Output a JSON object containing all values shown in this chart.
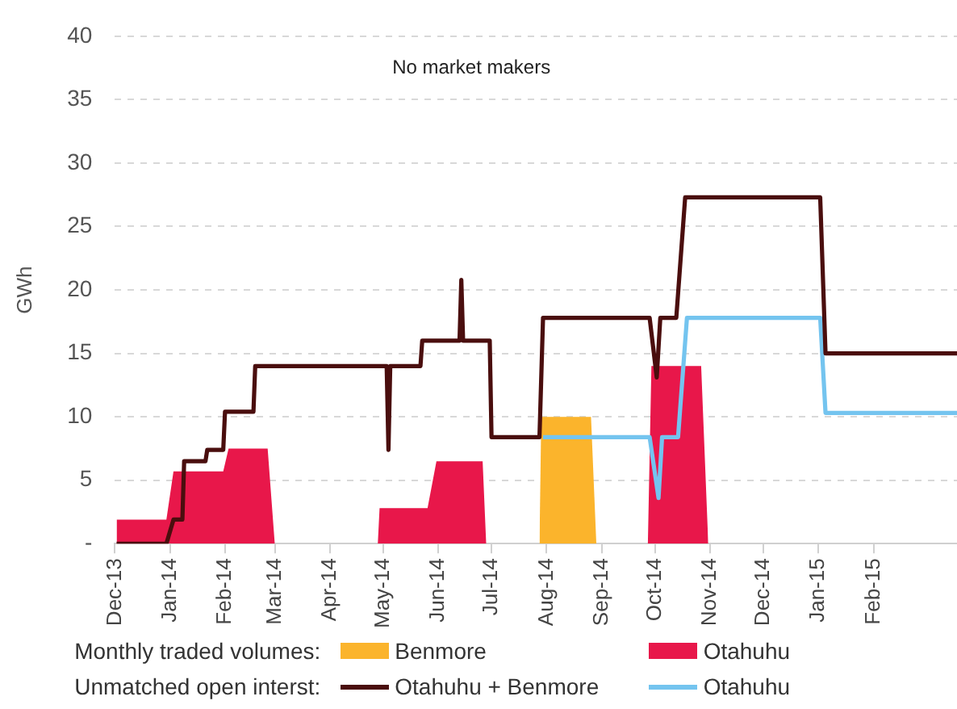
{
  "chart_data": {
    "type": "area",
    "ylabel": "GWh",
    "annotations": [
      "No market makers",
      "Monthly traded volumes:",
      "Unmatched open interst:"
    ],
    "xlim": [
      "2013-12-01",
      "2015-03-20"
    ],
    "xticks": [
      {
        "value": "2013-12",
        "label": "Dec-13"
      },
      {
        "value": "2014-01",
        "label": "Jan-14"
      },
      {
        "value": "2014-02",
        "label": "Feb-14"
      },
      {
        "value": "2014-03",
        "label": "Mar-14"
      },
      {
        "value": "2014-04",
        "label": "Apr-14"
      },
      {
        "value": "2014-05",
        "label": "May-14"
      },
      {
        "value": "2014-06",
        "label": "Jun-14"
      },
      {
        "value": "2014-07",
        "label": "Jul-14"
      },
      {
        "value": "2014-08",
        "label": "Aug-14"
      },
      {
        "value": "2014-09",
        "label": "Sep-14"
      },
      {
        "value": "2014-10",
        "label": "Oct-14"
      },
      {
        "value": "2014-11",
        "label": "Nov-14"
      },
      {
        "value": "2014-12",
        "label": "Dec-14"
      },
      {
        "value": "2015-01",
        "label": "Jan-15"
      },
      {
        "value": "2015-02",
        "label": "Feb-15"
      }
    ],
    "ylim": [
      0,
      40
    ],
    "yticks": [
      {
        "value": 0,
        "label": "-"
      },
      5,
      10,
      15,
      20,
      25,
      30,
      35,
      40
    ],
    "grid": "y",
    "legend": "bottom",
    "series": [
      {
        "name": "Benmore",
        "color": "#fbb42c",
        "x": [
          "2014-07-28",
          "2014-07-29",
          "2014-08-26",
          "2014-08-29"
        ],
        "values": [
          0,
          10,
          10,
          0
        ]
      },
      {
        "name": "Otahuhu",
        "color": "#e8174a",
        "x": [
          "2013-12-02",
          "2013-12-02",
          "2013-12-30",
          "2014-01-03",
          "2014-01-31",
          "2014-02-03",
          "2014-02-25",
          "2014-03-01",
          "2014-04-28",
          "2014-04-29",
          "2014-05-26",
          "2014-05-31",
          "2014-06-26",
          "2014-06-28",
          "2014-09-27",
          "2014-09-29",
          "2014-10-27",
          "2014-10-31"
        ],
        "values": [
          0,
          1.9,
          1.9,
          5.7,
          5.7,
          7.5,
          7.5,
          0,
          0,
          2.8,
          2.8,
          6.5,
          6.5,
          0,
          0,
          14,
          14,
          0
        ]
      },
      {
        "name": "Otahuhu + Benmore",
        "type": "line",
        "color": "#4a0e0e",
        "x": [
          "2013-12-02",
          "2013-12-30",
          "2014-01-03",
          "2014-01-08",
          "2014-01-09",
          "2014-01-21",
          "2014-01-22",
          "2014-01-31",
          "2014-02-01",
          "2014-02-17",
          "2014-02-18",
          "2014-05-03",
          "2014-05-04",
          "2014-05-05",
          "2014-05-22",
          "2014-05-23",
          "2014-06-13",
          "2014-06-14",
          "2014-06-15",
          "2014-06-30",
          "2014-07-01",
          "2014-07-28",
          "2014-07-30",
          "2014-09-28",
          "2014-10-02",
          "2014-10-04",
          "2014-10-13",
          "2014-10-18",
          "2015-01-02",
          "2015-01-05",
          "2015-03-20"
        ],
        "values": [
          0,
          0,
          1.9,
          1.9,
          6.5,
          6.5,
          7.4,
          7.4,
          10.4,
          10.4,
          14,
          14,
          7.4,
          14,
          14,
          16,
          16,
          20.8,
          16,
          16,
          8.4,
          8.4,
          17.8,
          17.8,
          13.1,
          17.8,
          17.8,
          27.3,
          27.3,
          15,
          15
        ]
      },
      {
        "name": "Otahuhu",
        "type": "line",
        "color": "#74c4ef",
        "x": [
          "2014-07-30",
          "2014-09-28",
          "2014-10-03",
          "2014-10-05",
          "2014-10-14",
          "2014-10-19",
          "2015-01-02",
          "2015-01-05",
          "2015-03-20"
        ],
        "values": [
          8.4,
          8.4,
          3.6,
          8.4,
          8.4,
          17.8,
          17.8,
          10.3,
          10.3
        ]
      }
    ]
  }
}
